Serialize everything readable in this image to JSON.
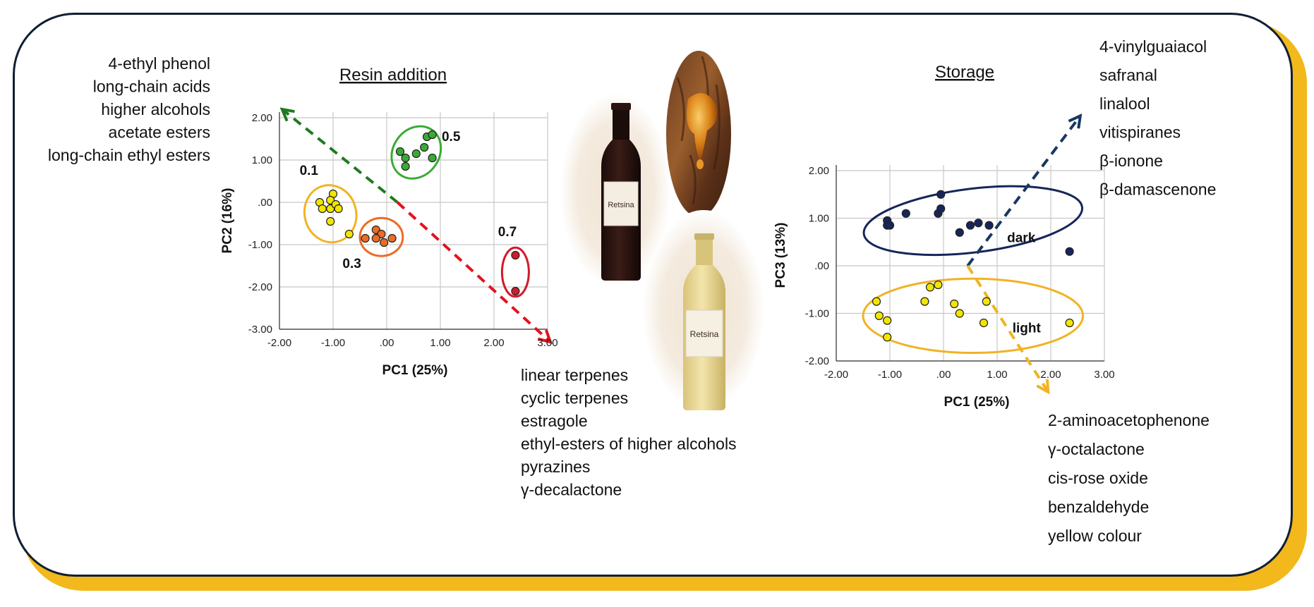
{
  "chart_data": [
    {
      "type": "scatter",
      "title": "Resin addition",
      "xlabel": "PC1 (25%)",
      "ylabel": "PC2 (16%)",
      "xlim": [
        -2.0,
        3.0
      ],
      "ylim": [
        -3.0,
        2.0
      ],
      "xticks": [
        "-2.00",
        "-1.00",
        ".00",
        "1.00",
        "2.00",
        "3.00"
      ],
      "yticks": [
        "-3.00",
        "-2.00",
        "-1.00",
        ".00",
        "1.00",
        "2.00"
      ],
      "grid": true,
      "series": [
        {
          "name": "0.1",
          "color": "#f2e600",
          "ellipse_color": "#f0b323",
          "points": [
            [
              -1.25,
              0.0
            ],
            [
              -1.2,
              -0.15
            ],
            [
              -1.05,
              -0.15
            ],
            [
              -1.0,
              0.2
            ],
            [
              -1.05,
              0.05
            ],
            [
              -0.95,
              -0.05
            ],
            [
              -0.9,
              -0.15
            ],
            [
              -1.05,
              -0.45
            ],
            [
              -0.7,
              -0.75
            ]
          ]
        },
        {
          "name": "0.3",
          "color": "#ec6b25",
          "ellipse_color": "#ec6b25",
          "points": [
            [
              -0.4,
              -0.85
            ],
            [
              -0.2,
              -0.65
            ],
            [
              -0.1,
              -0.75
            ],
            [
              -0.05,
              -0.95
            ],
            [
              -0.2,
              -0.85
            ],
            [
              0.1,
              -0.85
            ]
          ]
        },
        {
          "name": "0.5",
          "color": "#3aaa35",
          "ellipse_color": "#3aaa35",
          "points": [
            [
              0.25,
              1.2
            ],
            [
              0.35,
              1.05
            ],
            [
              0.35,
              0.85
            ],
            [
              0.55,
              1.15
            ],
            [
              0.75,
              1.55
            ],
            [
              0.85,
              1.6
            ],
            [
              0.85,
              1.05
            ],
            [
              0.7,
              1.3
            ]
          ]
        },
        {
          "name": "0.7",
          "color": "#d11a2a",
          "ellipse_color": "#d11a2a",
          "points": [
            [
              2.4,
              -1.25
            ],
            [
              2.4,
              -2.1
            ]
          ]
        }
      ],
      "arrows": [
        {
          "color": "#1f7a1f",
          "from": [
            0.2,
            0.0
          ],
          "to": [
            -1.95,
            2.2
          ]
        },
        {
          "color": "#e3121e",
          "from": [
            0.2,
            0.0
          ],
          "to": [
            3.05,
            -3.3
          ]
        }
      ],
      "left_labels": [
        "4-ethyl phenol",
        "long-chain acids",
        "higher alcohols",
        "acetate esters",
        "long-chain ethyl esters"
      ],
      "bottom_labels": [
        "linear terpenes",
        "cyclic terpenes",
        "estragole",
        "ethyl-esters of higher alcohols",
        "pyrazines",
        "γ-decalactone"
      ]
    },
    {
      "type": "scatter",
      "title": "Storage",
      "xlabel": "PC1 (25%)",
      "ylabel": "PC3 (13%)",
      "xlim": [
        -2.0,
        3.0
      ],
      "ylim": [
        -2.0,
        2.0
      ],
      "xticks": [
        "-2.00",
        "-1.00",
        ".00",
        "1.00",
        "2.00",
        "3.00"
      ],
      "yticks": [
        "-2.00",
        "-1.00",
        ".00",
        "1.00",
        "2.00"
      ],
      "grid": true,
      "series": [
        {
          "name": "dark",
          "color": "#17255a",
          "ellipse_color": "#17255a",
          "points": [
            [
              -1.05,
              0.95
            ],
            [
              -1.05,
              0.85
            ],
            [
              -1.0,
              0.85
            ],
            [
              -0.7,
              1.1
            ],
            [
              -0.1,
              1.1
            ],
            [
              -0.05,
              1.5
            ],
            [
              -0.05,
              1.2
            ],
            [
              0.3,
              0.7
            ],
            [
              0.5,
              0.85
            ],
            [
              0.65,
              0.9
            ],
            [
              0.85,
              0.85
            ],
            [
              2.35,
              0.3
            ]
          ]
        },
        {
          "name": "light",
          "color": "#f2e600",
          "ellipse_color": "#f0b323",
          "points": [
            [
              -1.25,
              -0.75
            ],
            [
              -1.2,
              -1.05
            ],
            [
              -1.05,
              -1.15
            ],
            [
              -1.05,
              -1.5
            ],
            [
              -0.35,
              -0.75
            ],
            [
              -0.25,
              -0.45
            ],
            [
              -0.1,
              -0.4
            ],
            [
              0.2,
              -0.8
            ],
            [
              0.3,
              -1.0
            ],
            [
              0.75,
              -1.2
            ],
            [
              0.8,
              -0.75
            ],
            [
              2.35,
              -1.2
            ]
          ]
        }
      ],
      "arrows": [
        {
          "color": "#17385f",
          "from": [
            0.45,
            0.0
          ],
          "to": [
            2.55,
            3.15
          ]
        },
        {
          "color": "#f0b323",
          "from": [
            0.45,
            0.0
          ],
          "to": [
            1.95,
            -2.65
          ]
        }
      ],
      "top_labels": [
        "4-vinylguaiacol",
        "safranal",
        "linalool",
        "vitispiranes",
        "β-ionone",
        "β-damascenone"
      ],
      "bottom_labels": [
        "2-aminoacetophenone",
        "γ-octalactone",
        "cis-rose oxide",
        "benzaldehyde",
        "yellow colour"
      ]
    }
  ],
  "images": {
    "bottle_label": "Retsina"
  }
}
